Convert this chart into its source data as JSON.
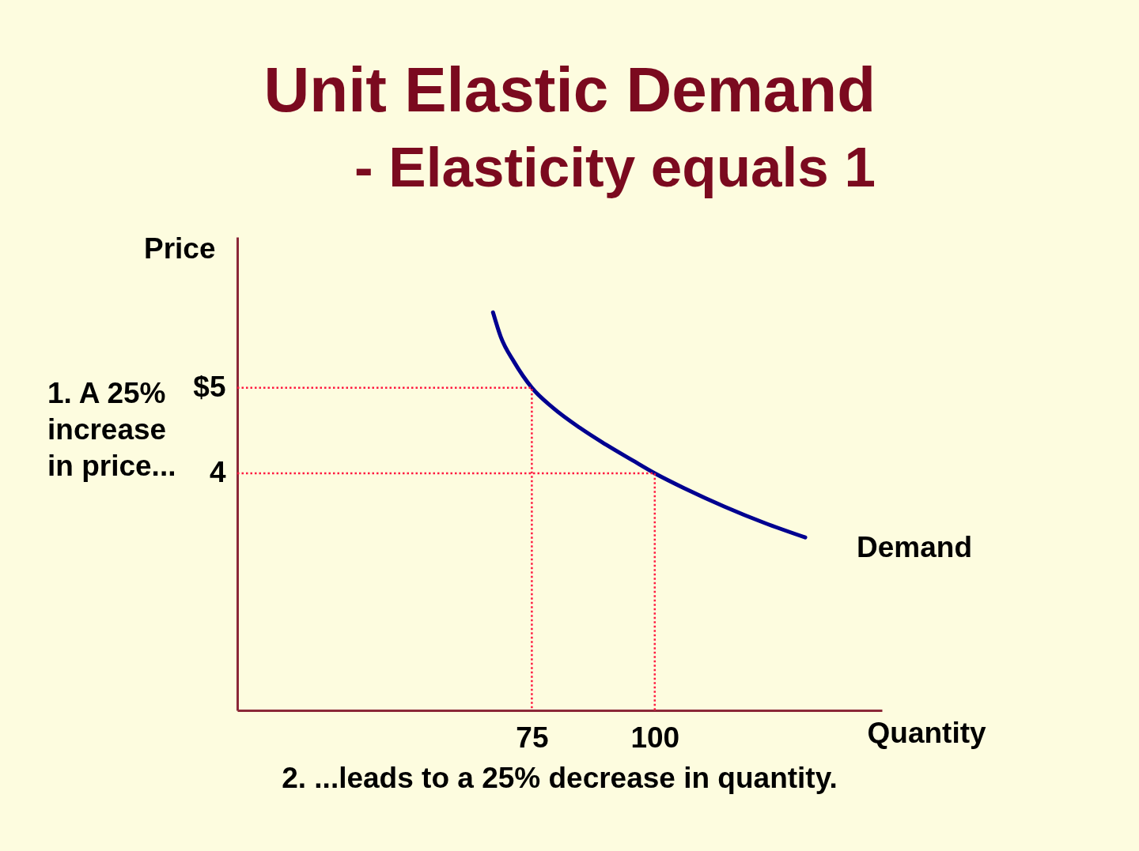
{
  "chart_data": {
    "type": "line",
    "title": "Unit Elastic Demand",
    "subtitle": "- Elasticity equals 1",
    "xlabel": "Quantity",
    "ylabel": "Price",
    "xlim": [
      15.1,
      146.2
    ],
    "ylim": [
      1.23,
      6.76
    ],
    "xticks": [
      75,
      100
    ],
    "yticks": [
      {
        "value": 5,
        "label": "$5"
      },
      4
    ],
    "series": [
      {
        "name": "Demand",
        "color": "#000090",
        "line_style": "solid",
        "x": [
          67.1,
          68.7,
          71.4,
          75,
          79.4,
          84.8,
          90.2,
          95.5,
          100,
          106.2,
          114.2,
          122.3,
          130.6
        ],
        "values": [
          5.88,
          5.59,
          5.3,
          5,
          4.76,
          4.53,
          4.33,
          4.15,
          4,
          3.82,
          3.61,
          3.42,
          3.25
        ]
      },
      {
        "color": "#ff1a40",
        "line_style": "dotted",
        "x": [
          15.1,
          75,
          75
        ],
        "values": [
          5,
          5,
          1.23
        ]
      },
      {
        "color": "#ff1a40",
        "line_style": "dotted",
        "x": [
          15.1,
          100,
          100
        ],
        "values": [
          4,
          4,
          1.23
        ]
      }
    ],
    "annotations": [
      "1. A 25%\nincrease\nin price...",
      "2. ...leads to a 25% decrease in quantity."
    ]
  }
}
